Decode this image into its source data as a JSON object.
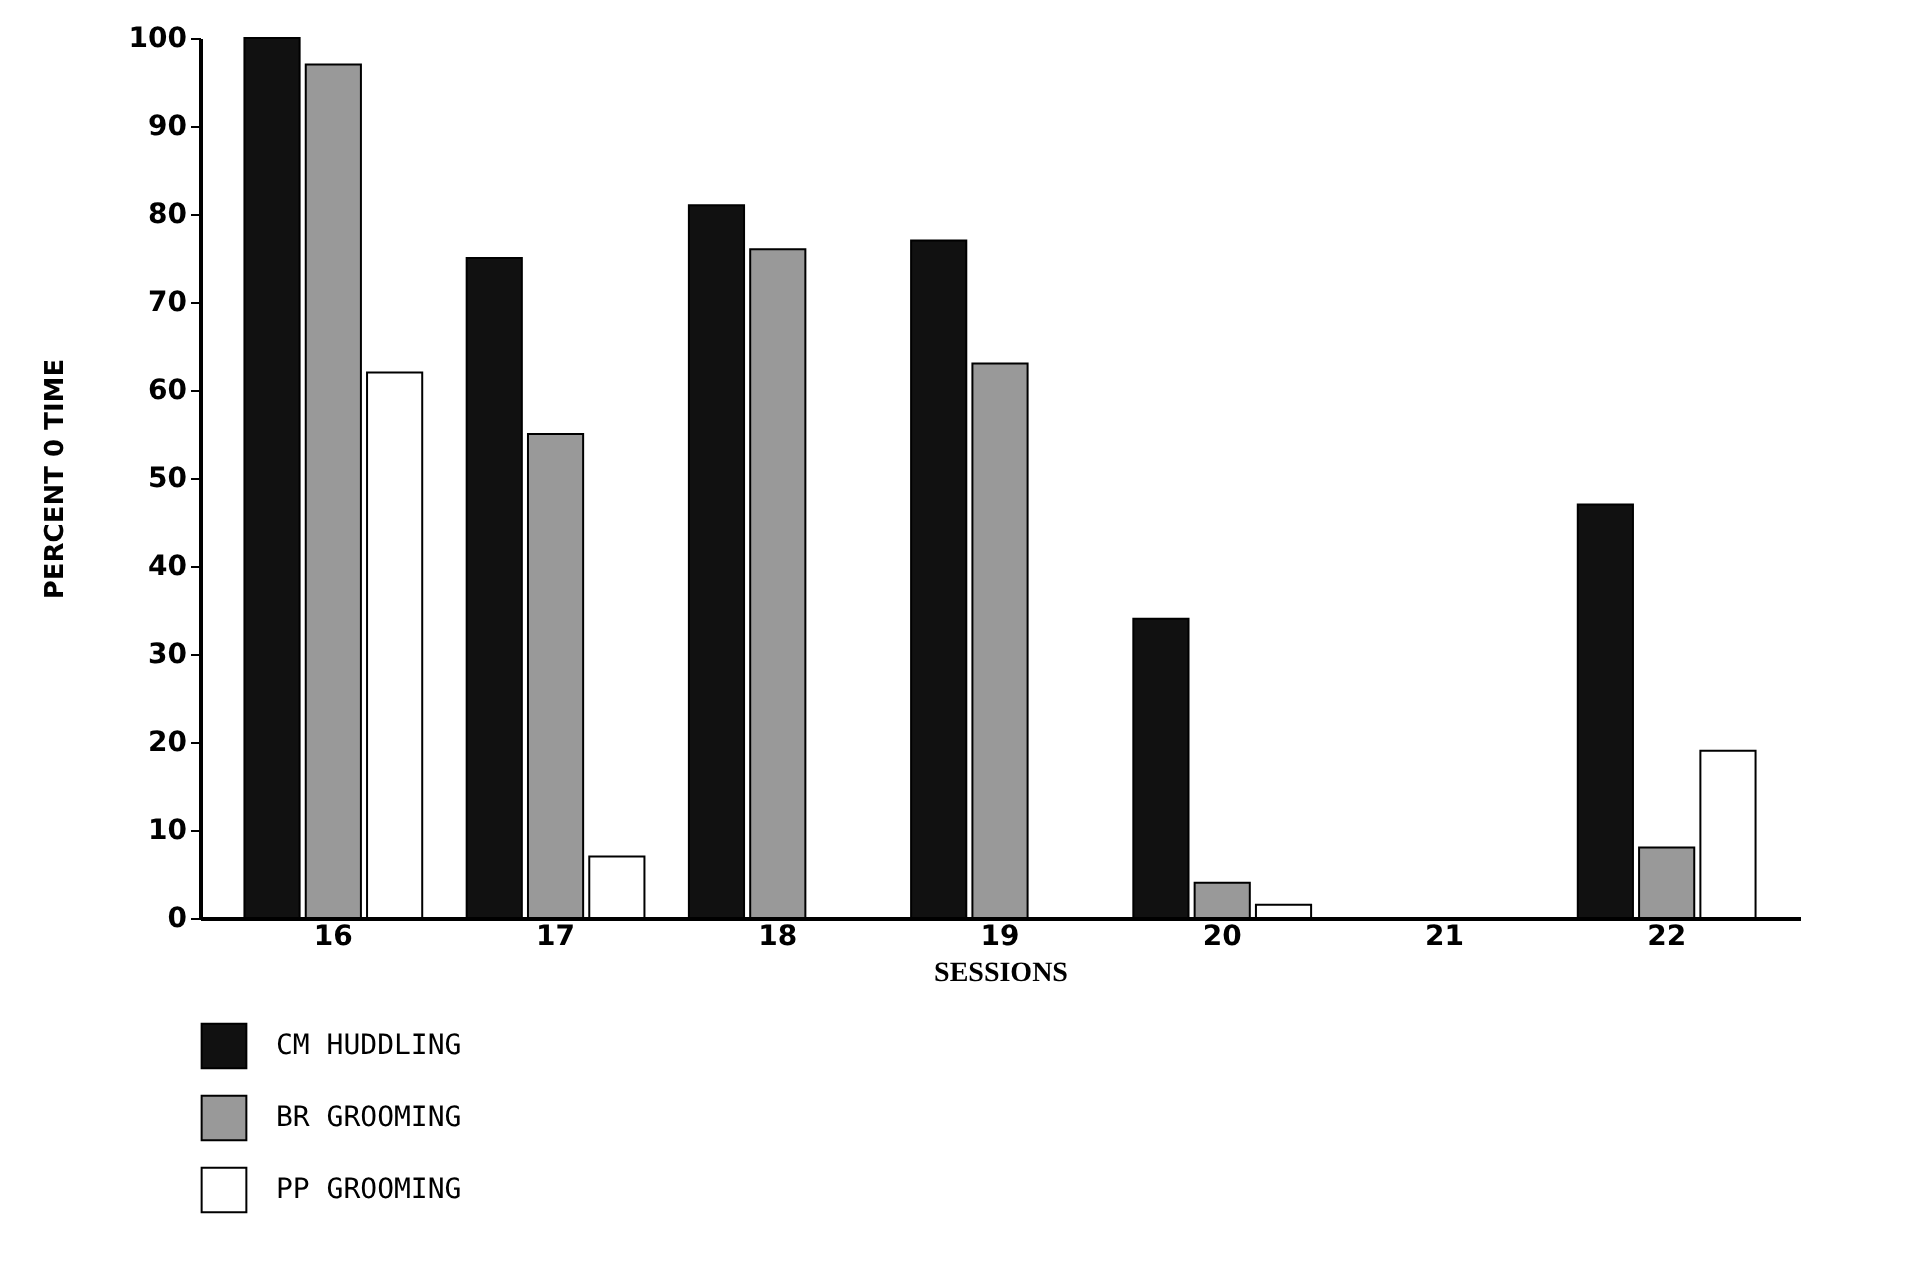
{
  "chart_data": {
    "type": "bar",
    "xlabel": "SESSIONS",
    "ylabel": "PERCENT 0 TIME",
    "categories": [
      "16",
      "17",
      "18",
      "19",
      "20",
      "21",
      "22"
    ],
    "series": [
      {
        "name": "CM HUDDLING",
        "color": "#111111",
        "values": [
          100,
          75,
          81,
          77,
          34,
          null,
          47
        ]
      },
      {
        "name": "BR GROOMING",
        "color": "#999999",
        "values": [
          97,
          55,
          76,
          63,
          4,
          null,
          8
        ]
      },
      {
        "name": "PP GROOMING",
        "color": "#ffffff",
        "values": [
          62,
          7,
          null,
          null,
          1.5,
          null,
          19
        ]
      }
    ],
    "ylim": [
      0,
      100
    ],
    "yticks": [
      0,
      10,
      20,
      30,
      40,
      50,
      60,
      70,
      80,
      90,
      100
    ],
    "grid": false,
    "legend": "bottom left"
  }
}
